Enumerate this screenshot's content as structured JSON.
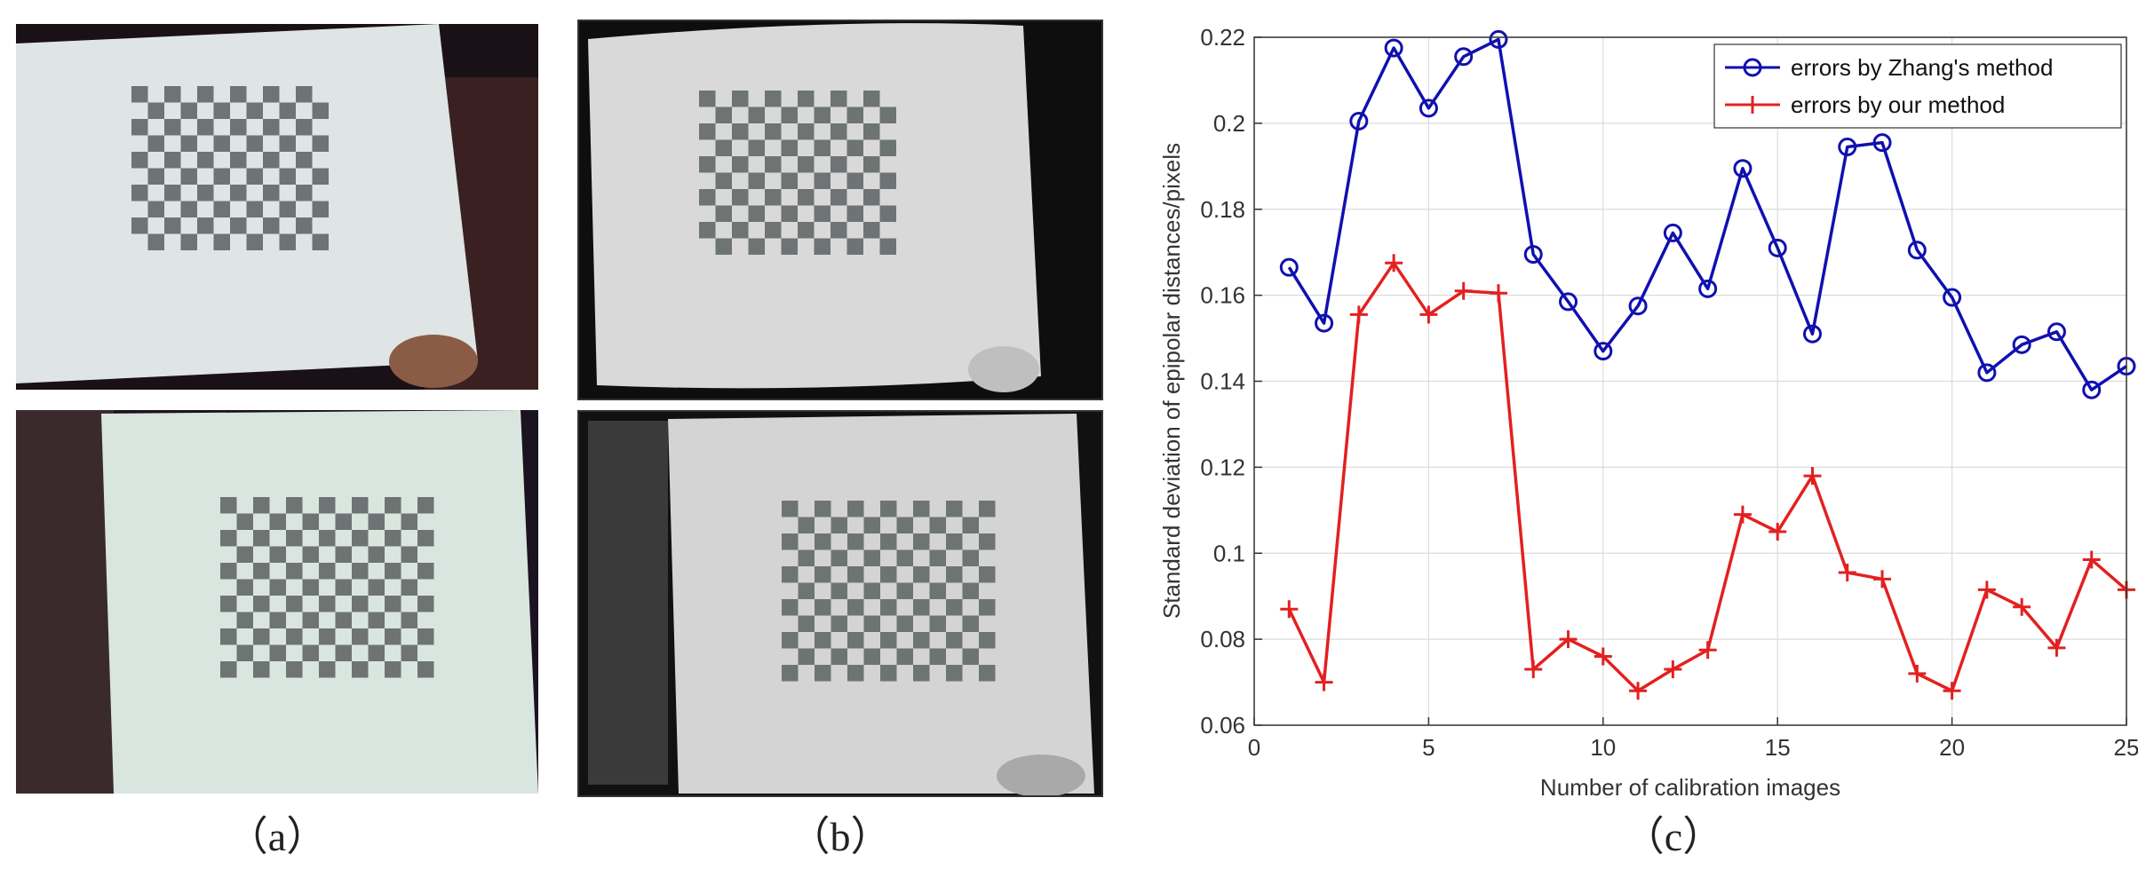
{
  "panels": {
    "a": {
      "caption": "（a）"
    },
    "b": {
      "caption": "（b）"
    },
    "c": {
      "caption": "（c）"
    }
  },
  "colors": {
    "zhang": "#1010b0",
    "ours": "#e32020",
    "board": "#e6ecea",
    "checker_dark": "#6e7474"
  },
  "chart_data": {
    "type": "line",
    "xlabel": "Number of calibration images",
    "ylabel": "Standard deviation of epipolar distances/pixels",
    "xlim": [
      0,
      25
    ],
    "ylim": [
      0.06,
      0.22
    ],
    "xticks": [
      0,
      5,
      10,
      15,
      20,
      25
    ],
    "yticks": [
      0.06,
      0.08,
      0.1,
      0.12,
      0.14,
      0.16,
      0.18,
      0.2,
      0.22
    ],
    "ytick_labels": [
      "0.06",
      "0.08",
      "0.1",
      "0.12",
      "0.14",
      "0.16",
      "0.18",
      "0.2",
      "0.22"
    ],
    "grid": true,
    "legend_position": "top-right",
    "x": [
      1,
      2,
      3,
      4,
      5,
      6,
      7,
      8,
      9,
      10,
      11,
      12,
      13,
      14,
      15,
      16,
      17,
      18,
      19,
      20,
      21,
      22,
      23,
      24,
      25
    ],
    "series": [
      {
        "name": "errors by Zhang's method",
        "marker": "circle",
        "color": "#1010b0",
        "values": [
          0.1665,
          0.1535,
          0.2005,
          0.2175,
          0.2035,
          0.2155,
          0.2195,
          0.1695,
          0.1585,
          0.147,
          0.1575,
          0.1745,
          0.1615,
          0.1895,
          0.171,
          0.151,
          0.1945,
          0.1955,
          0.1705,
          0.1595,
          0.142,
          0.1485,
          0.1515,
          0.138,
          0.1435
        ]
      },
      {
        "name": "errors by our method",
        "marker": "plus",
        "color": "#e32020",
        "values": [
          0.087,
          0.07,
          0.1555,
          0.1675,
          0.1555,
          0.161,
          0.1605,
          0.073,
          0.08,
          0.076,
          0.068,
          0.073,
          0.0775,
          0.109,
          0.105,
          0.118,
          0.0955,
          0.094,
          0.072,
          0.068,
          0.0915,
          0.0875,
          0.078,
          0.0985,
          0.0915
        ]
      }
    ]
  }
}
